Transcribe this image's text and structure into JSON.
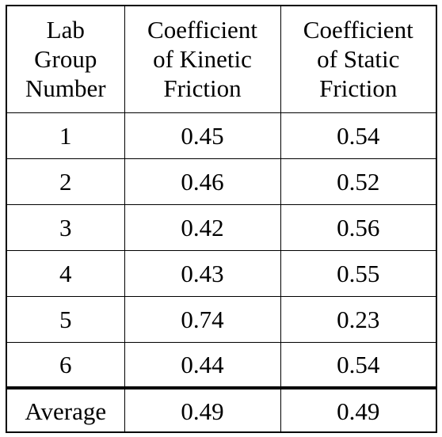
{
  "table": {
    "headers": [
      [
        "Lab",
        "Group",
        "Number"
      ],
      [
        "Coefficient",
        "of Kinetic",
        "Friction"
      ],
      [
        "Coefficient",
        "of Static",
        "Friction"
      ]
    ],
    "rows": [
      [
        "1",
        "0.45",
        "0.54"
      ],
      [
        "2",
        "0.46",
        "0.52"
      ],
      [
        "3",
        "0.42",
        "0.56"
      ],
      [
        "4",
        "0.43",
        "0.55"
      ],
      [
        "5",
        "0.74",
        "0.23"
      ],
      [
        "6",
        "0.44",
        "0.54"
      ]
    ],
    "average": [
      "Average",
      "0.49",
      "0.49"
    ]
  }
}
